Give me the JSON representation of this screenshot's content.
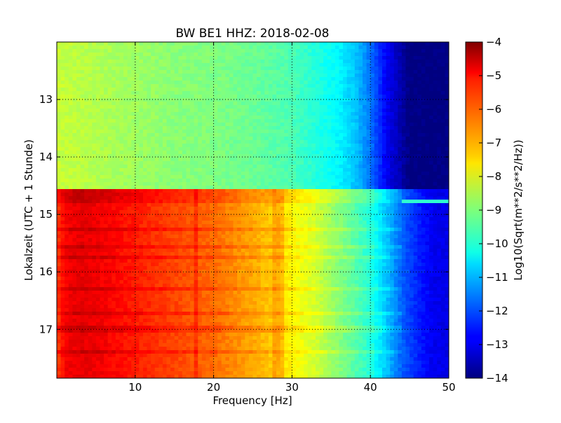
{
  "chart_data": {
    "type": "heatmap",
    "title": "BW BE1 HHZ: 2018-02-08",
    "xlabel": "Frequency [Hz]",
    "ylabel": "Lokalzeit (UTC + 1 Stunde)",
    "xlim": [
      0,
      50
    ],
    "ylim": [
      12.0,
      17.85
    ],
    "y_inverted": true,
    "grid": true,
    "x_ticks": [
      10,
      20,
      30,
      40,
      50
    ],
    "x_tick_labels": [
      "10",
      "20",
      "30",
      "40",
      "50"
    ],
    "y_ticks": [
      13,
      14,
      15,
      16,
      17
    ],
    "y_tick_labels": [
      "13",
      "14",
      "15",
      "16",
      "17"
    ],
    "colormap": "jet",
    "colorbar": {
      "label": "Log10(Sqrt(m**2/s**2/Hz))",
      "range": [
        -14,
        -4
      ],
      "ticks": [
        -4,
        -5,
        -6,
        -7,
        -8,
        -9,
        -10,
        -11,
        -12,
        -13,
        -14
      ],
      "tick_labels": [
        "−4",
        "−5",
        "−6",
        "−7",
        "−8",
        "−9",
        "−10",
        "−11",
        "−12",
        "−13",
        "−14"
      ]
    },
    "regions": [
      {
        "name": "before 14.55",
        "time_range": [
          12.0,
          14.55
        ],
        "profile": {
          "freq": [
            0,
            5,
            10,
            15,
            20,
            25,
            30,
            33,
            36,
            38,
            40,
            42,
            44,
            45,
            50
          ],
          "value": [
            -8.3,
            -8.5,
            -8.7,
            -8.9,
            -9.0,
            -9.2,
            -9.5,
            -9.9,
            -10.3,
            -10.8,
            -11.6,
            -12.8,
            -13.6,
            -14,
            -14
          ]
        }
      },
      {
        "name": "after 14.55",
        "time_range": [
          14.55,
          17.85
        ],
        "profile": {
          "freq": [
            0,
            1,
            3,
            5,
            10,
            15,
            20,
            25,
            28,
            30,
            33,
            35,
            38,
            40,
            42,
            44,
            46,
            48,
            50
          ],
          "value": [
            -5.9,
            -5.2,
            -5.0,
            -5.1,
            -5.5,
            -5.9,
            -6.3,
            -6.9,
            -7.3,
            -7.7,
            -8.2,
            -8.7,
            -9.4,
            -9.9,
            -10.8,
            -11.8,
            -12.4,
            -12.9,
            -13.0
          ]
        }
      }
    ],
    "bright_lines_hz": [
      17.9,
      27.8,
      28.5
    ],
    "bright_bands_hours": [
      14.6,
      14.68,
      14.78,
      15.25,
      15.55,
      15.75,
      16.3,
      16.7,
      17.0,
      17.4
    ],
    "cyan_stripe_hour": 14.78
  }
}
